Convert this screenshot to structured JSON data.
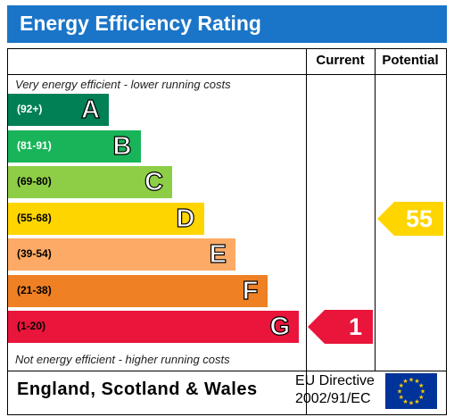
{
  "title": "Energy Efficiency Rating",
  "columns": {
    "current": "Current",
    "potential": "Potential"
  },
  "captions": {
    "top": "Very energy efficient - lower running costs",
    "bottom": "Not energy efficient - higher running costs"
  },
  "bands": [
    {
      "letter": "A",
      "range": "(92+)",
      "color": "#008054",
      "range_color": "#ffffff"
    },
    {
      "letter": "B",
      "range": "(81-91)",
      "color": "#19b459",
      "range_color": "#ffffff"
    },
    {
      "letter": "C",
      "range": "(69-80)",
      "color": "#8dce46",
      "range_color": "#000000"
    },
    {
      "letter": "D",
      "range": "(55-68)",
      "color": "#ffd500",
      "range_color": "#000000"
    },
    {
      "letter": "E",
      "range": "(39-54)",
      "color": "#fcaa65",
      "range_color": "#000000"
    },
    {
      "letter": "F",
      "range": "(21-38)",
      "color": "#ef8023",
      "range_color": "#000000"
    },
    {
      "letter": "G",
      "range": "(1-20)",
      "color": "#e9153b",
      "range_color": "#000000"
    }
  ],
  "ratings": {
    "current": {
      "value": "1",
      "band": "G",
      "color": "#e9153b"
    },
    "potential": {
      "value": "55",
      "band": "D",
      "color": "#ffd500"
    }
  },
  "footer": {
    "region": "England, Scotland & Wales",
    "directive_line1": "EU Directive",
    "directive_line2": "2002/91/EC",
    "flag_icon": "eu-flag-icon"
  }
}
